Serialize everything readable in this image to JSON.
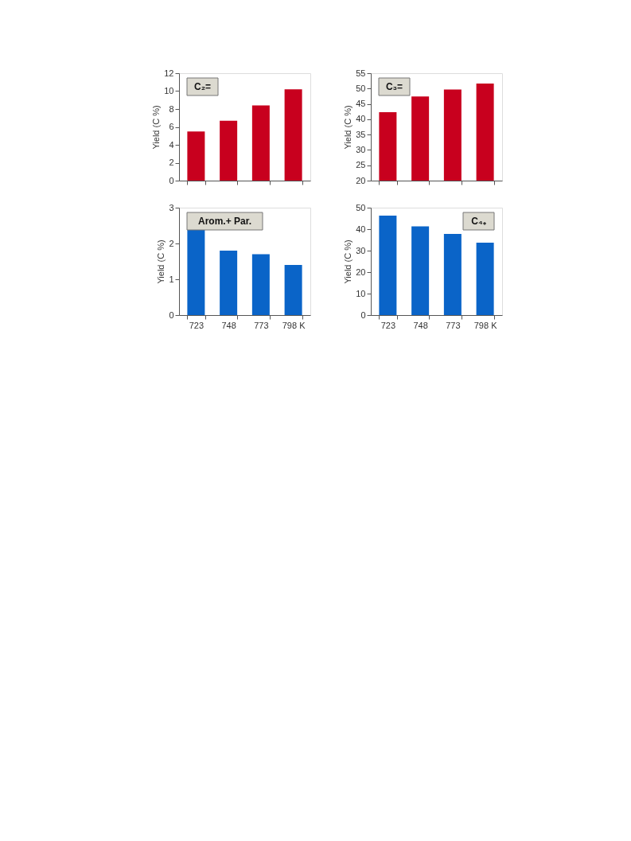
{
  "chart_data": [
    {
      "type": "bar",
      "title": "C₂=",
      "ylabel": "Yield (C %)",
      "categories": [
        null,
        null,
        null,
        null
      ],
      "series": [
        {
          "color": "#c8001e",
          "values": [
            5.5,
            6.7,
            8.4,
            10.2
          ]
        }
      ],
      "ylim": [
        0,
        12
      ],
      "yticks": [
        0,
        2,
        4,
        6,
        8,
        10,
        12
      ],
      "grid": false
    },
    {
      "type": "bar",
      "title": "C₃=",
      "ylabel": "Yield (C %)",
      "categories": [
        null,
        null,
        null,
        null
      ],
      "series": [
        {
          "color": "#c8001e",
          "values": [
            42.3,
            47.4,
            49.7,
            51.6
          ]
        }
      ],
      "ylim": [
        20,
        55
      ],
      "yticks": [
        20,
        25,
        30,
        35,
        40,
        45,
        50,
        55
      ],
      "grid": false
    },
    {
      "type": "bar",
      "title": "Arom.+ Par.",
      "ylabel": "Yield (C %)",
      "categories": [
        "723",
        "748",
        "773",
        "798 K"
      ],
      "series": [
        {
          "color": "#0a64c8",
          "values": [
            2.4,
            1.8,
            1.7,
            1.4
          ]
        }
      ],
      "ylim": [
        0,
        3
      ],
      "yticks": [
        0,
        1,
        2,
        3
      ],
      "grid": false
    },
    {
      "type": "bar",
      "title": "C₄₊",
      "ylabel": "Yield (C %)",
      "categories": [
        "723",
        "748",
        "773",
        "798 K"
      ],
      "series": [
        {
          "color": "#0a64c8",
          "values": [
            46.3,
            41.3,
            37.8,
            33.7
          ]
        }
      ],
      "ylim": [
        0,
        50
      ],
      "yticks": [
        0,
        10,
        20,
        30,
        40,
        50
      ],
      "grid": false
    }
  ]
}
